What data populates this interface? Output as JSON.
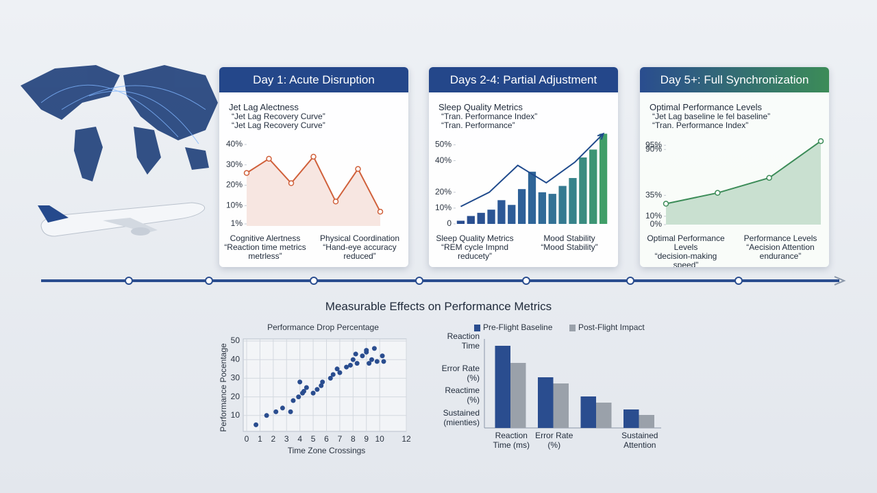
{
  "heading": "Measurable Effects on Performance Metrics",
  "chart_data": [
    {
      "type": "line",
      "title": "Day 1: Acute Disruption",
      "heading": "Jet Lag Alectness",
      "notes": [
        "“Jet Lag Recovery Curve”",
        "“Jet Lag Recovery Curve”"
      ],
      "footers": [
        {
          "title": "Cognitive Alertness",
          "text": "“Reaction time metrics\nmetrless”"
        },
        {
          "title": "Physical Coordination",
          "text": "“Hand-eye accuracy\nreduced”"
        }
      ],
      "values": [
        26,
        33,
        21,
        34,
        12,
        28,
        7
      ],
      "color": "#d0603a",
      "ylim": [
        0,
        40
      ],
      "yticks": [
        {
          "value": 40,
          "label": "40%"
        },
        {
          "value": 30,
          "label": "30%"
        },
        {
          "value": 20,
          "label": "20%"
        },
        {
          "value": 10,
          "label": "10%"
        },
        {
          "value": 1,
          "label": "1%"
        }
      ]
    },
    {
      "type": "bar",
      "title": "Days 2-4: Partial Adjustment",
      "heading": "Sleep Quality Metrics",
      "notes": [
        "“Tran. Performance Index”",
        "“Tran. Performance”"
      ],
      "footers": [
        {
          "title": "Sleep Quality Metrics",
          "text": "“REM cycle Impnd\nreducety”"
        },
        {
          "title": "Mood Stability",
          "text": "“Mood Stability”"
        }
      ],
      "values": [
        2,
        5,
        7,
        9,
        15,
        12,
        22,
        33,
        20,
        19,
        24,
        29,
        42,
        47,
        57
      ],
      "colors": [
        "#2a4d8f",
        "#2a4f90",
        "#2b5292",
        "#2b5594",
        "#2c5896",
        "#2d5c97",
        "#2e6098",
        "#2f6598",
        "#316b97",
        "#337295",
        "#357a90",
        "#37838a",
        "#3a8c80",
        "#3d9574",
        "#409e68"
      ],
      "line": {
        "values": [
          11,
          20,
          37,
          26,
          39,
          57
        ],
        "color": "#1f4a8c"
      },
      "ylim": [
        0,
        58
      ],
      "yticks": [
        {
          "value": 50,
          "label": "50%"
        },
        {
          "value": 40,
          "label": "40%"
        },
        {
          "value": 20,
          "label": "20%"
        },
        {
          "value": 10,
          "label": "10%"
        },
        0
      ]
    },
    {
      "type": "line",
      "title": "Day 5+: Full Synchronization",
      "heading": "Optimal Performance Levels",
      "notes": [
        "“Jet Lag baseline le fel baseline”",
        "“Tran. Performance Index”"
      ],
      "footers": [
        {
          "title": "Optimal Performance Levels",
          "text": "“decision-making speed”\nand endurance”"
        },
        {
          "title": "Performance Levels",
          "text": "“Aecision Attention\nendurance”"
        }
      ],
      "values": [
        25,
        38,
        56,
        100
      ],
      "color": "#3c8c58",
      "area": true,
      "ylim": [
        0,
        105
      ],
      "yticks": [
        {
          "value": 95,
          "label": "95%"
        },
        {
          "value": 90,
          "label": "90%"
        },
        {
          "value": 35,
          "label": "35%"
        },
        {
          "value": 10,
          "label": "10%"
        },
        {
          "value": 0,
          "label": "0%"
        }
      ]
    },
    {
      "type": "scatter",
      "title": "Performance Drop Percentage",
      "xlabel": "Time Zone Crossings",
      "ylabel": "Performance Pocentage",
      "x": [
        0.7,
        1.5,
        2.2,
        2.7,
        3.3,
        3.5,
        3.9,
        4.2,
        4.0,
        4.5,
        4.3,
        5.0,
        5.3,
        5.6,
        5.7,
        6.3,
        6.5,
        6.8,
        7.0,
        7.5,
        7.8,
        8.0,
        8.3,
        8.7,
        9.0,
        9.2,
        9.4,
        9.6,
        9.8,
        10.2,
        10.3,
        9.0,
        8.2
      ],
      "y": [
        5,
        10,
        12,
        14,
        12,
        18,
        20,
        22,
        28,
        25,
        23,
        22,
        24,
        26,
        28,
        30,
        32,
        35,
        33,
        36,
        37,
        40,
        38,
        42,
        44,
        38,
        40,
        46,
        39,
        42,
        39,
        45,
        43
      ],
      "color": "#2a4d8f",
      "grid": true,
      "xlim": [
        0,
        12
      ],
      "xticks": [
        0,
        1,
        2,
        3,
        4,
        5,
        6,
        7,
        8,
        9,
        10,
        12
      ],
      "ylim": [
        0,
        50
      ],
      "yticks": [
        10,
        20,
        30,
        40,
        50
      ]
    },
    {
      "type": "bar",
      "categories": [
        "Reaction\nTime (ms)",
        "Error Rate\n(%)",
        null,
        "Sustained\nAttention"
      ],
      "ylabels": [
        "Reaction\nTime",
        "Error Rate\n(%)",
        "Reactime\n(%)",
        "Sustained\n(mienties)"
      ],
      "series": [
        {
          "name": "Pre-Flight Baseline",
          "color": "#2a4d8f",
          "values": [
            120,
            74,
            46,
            27
          ]
        },
        {
          "name": "Post-Flight Impact",
          "color": "#9aa1aa",
          "values": [
            95,
            65,
            37,
            19
          ]
        }
      ]
    }
  ]
}
